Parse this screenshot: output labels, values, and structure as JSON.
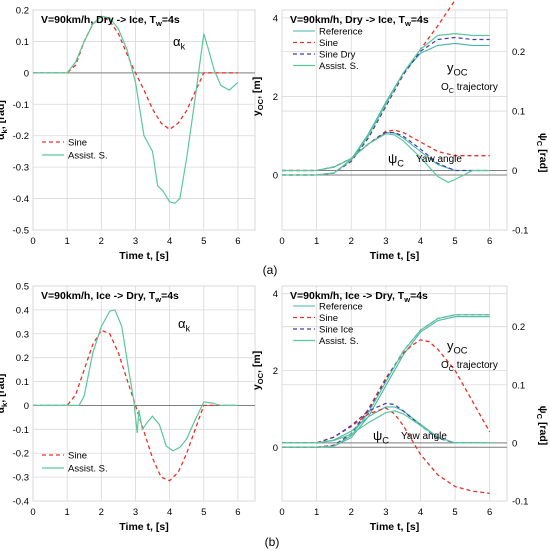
{
  "panel_labels": {
    "a": "(a)",
    "b": "(b)"
  },
  "colors": {
    "reference": "#45b7a8",
    "sine": "#e8312a",
    "sine_alt": "#3c3cb4",
    "assist": "#5cc79a",
    "grid": "#d9d9d9",
    "axis": "#7f7f7f"
  },
  "chart_data": [
    {
      "id": "a-left",
      "type": "line",
      "title": "V=90km/h, Dry -> Ice, T",
      "title_sub": "w",
      "title_tail": "=4s",
      "xlabel": "Time t, [s]",
      "ylabel_main": "α",
      "ylabel_sub": "k",
      "ylabel_tail": ", [rad]",
      "annotation_main": "α",
      "annotation_sub": "k",
      "xlim": [
        0,
        6.5
      ],
      "ylim": [
        -0.5,
        0.2
      ],
      "xticks": [
        0,
        1,
        2,
        3,
        4,
        5,
        6
      ],
      "yticks": [
        -0.5,
        -0.4,
        -0.3,
        -0.2,
        -0.1,
        0,
        0.1,
        0.2
      ],
      "ytick_labels": [
        "-0.5",
        "-0.4",
        "-0.3",
        "-0.2",
        "-0.1",
        "0",
        "0.1",
        "0.2"
      ],
      "series": [
        {
          "name": "Sine",
          "style": "sine",
          "x": [
            0,
            1,
            1.25,
            1.5,
            1.75,
            2,
            2.25,
            2.5,
            2.75,
            3,
            3.25,
            3.5,
            3.75,
            4,
            4.25,
            4.5,
            4.75,
            5,
            5.25,
            5.5,
            5.75,
            6
          ],
          "y": [
            0,
            0,
            0.025,
            0.1,
            0.155,
            0.18,
            0.165,
            0.125,
            0.06,
            0,
            -0.055,
            -0.115,
            -0.16,
            -0.18,
            -0.16,
            -0.12,
            -0.06,
            0,
            0,
            0,
            0,
            0
          ]
        },
        {
          "name": "Assist. S.",
          "style": "assist",
          "x": [
            0,
            1,
            1.25,
            1.5,
            1.75,
            2,
            2.25,
            2.5,
            2.75,
            3,
            3.25,
            3.5,
            3.65,
            3.8,
            4,
            4.15,
            4.3,
            4.5,
            4.75,
            5,
            5.15,
            5.3,
            5.5,
            5.75,
            6
          ],
          "y": [
            0,
            0,
            0.035,
            0.1,
            0.155,
            0.18,
            0.175,
            0.14,
            0.075,
            -0.03,
            -0.2,
            -0.25,
            -0.36,
            -0.375,
            -0.41,
            -0.415,
            -0.4,
            -0.27,
            -0.08,
            0.125,
            0.07,
            0.01,
            -0.04,
            -0.055,
            -0.03
          ]
        }
      ]
    },
    {
      "id": "a-right",
      "type": "line",
      "title": "V=90km/h, Dry -> Ice, T",
      "title_sub": "w",
      "title_tail": "=4s",
      "xlabel": "Time t, [s]",
      "ylabel_main": "y",
      "ylabel_sub": "OC",
      "ylabel_tail": ", [m]",
      "y2label_main": "ψ",
      "y2label_sub": "C",
      "y2label_tail": " [rad]",
      "ann_top_main": "y",
      "ann_top_sub": "OC",
      "ann_top_label": "trajectory",
      "ann_top_label_main": "O",
      "ann_top_label_sub": "C",
      "ann_bot_main": "ψ",
      "ann_bot_sub": "C",
      "ann_bot_label": "Yaw angle",
      "xlim": [
        0,
        6.5
      ],
      "xticks": [
        0,
        1,
        2,
        3,
        4,
        5,
        6
      ],
      "yticks_left": [
        0,
        2,
        4
      ],
      "yticks_right": [
        -0.1,
        0,
        0.1,
        0.2
      ],
      "ylim_left": [
        -1.4,
        4.2
      ],
      "ylim_right": [
        -0.1,
        0.27
      ],
      "series_top": [
        {
          "name": "Reference",
          "style": "reference",
          "x": [
            0,
            1,
            1.5,
            2,
            2.5,
            3,
            3.5,
            4,
            4.5,
            5,
            5.5,
            6
          ],
          "y": [
            0,
            0,
            0.05,
            0.4,
            1.05,
            1.85,
            2.6,
            3.1,
            3.3,
            3.35,
            3.3,
            3.3
          ]
        },
        {
          "name": "Sine",
          "style": "sine",
          "x": [
            0,
            1,
            1.5,
            2,
            2.5,
            3,
            3.5,
            4,
            4.5,
            5,
            5.5,
            6
          ],
          "y": [
            0,
            0,
            0.05,
            0.35,
            0.95,
            1.75,
            2.55,
            3.2,
            3.8,
            4.45,
            5.1,
            5.7
          ]
        },
        {
          "name": "Sine Dry",
          "style": "sine_alt",
          "x": [
            0,
            1,
            1.5,
            2,
            2.5,
            3,
            3.5,
            4,
            4.5,
            5,
            5.5,
            6
          ],
          "y": [
            0,
            0,
            0.05,
            0.35,
            0.95,
            1.75,
            2.55,
            3.15,
            3.45,
            3.5,
            3.45,
            3.45
          ]
        },
        {
          "name": "Assist. S.",
          "style": "assist",
          "x": [
            0,
            1,
            1.5,
            2,
            2.5,
            3,
            3.5,
            4,
            4.5,
            5,
            5.5,
            6
          ],
          "y": [
            0,
            0,
            0.05,
            0.38,
            1.0,
            1.8,
            2.6,
            3.2,
            3.55,
            3.6,
            3.55,
            3.55
          ]
        }
      ],
      "series_bottom": [
        {
          "name": "Reference",
          "style": "reference",
          "x": [
            0,
            1,
            1.5,
            2,
            2.5,
            3,
            3.25,
            3.5,
            4,
            4.5,
            5,
            5.5,
            6
          ],
          "y": [
            0,
            0,
            0.006,
            0.02,
            0.045,
            0.064,
            0.063,
            0.055,
            0.032,
            0.01,
            0,
            0,
            0
          ]
        },
        {
          "name": "Sine",
          "style": "sine",
          "x": [
            0,
            1,
            1.5,
            2,
            2.5,
            3,
            3.25,
            3.5,
            4,
            4.5,
            5,
            5.5,
            6
          ],
          "y": [
            0,
            0,
            0.006,
            0.02,
            0.045,
            0.066,
            0.068,
            0.064,
            0.048,
            0.032,
            0.025,
            0.025,
            0.025
          ]
        },
        {
          "name": "Sine Dry",
          "style": "sine_alt",
          "x": [
            0,
            1,
            1.5,
            2,
            2.5,
            3,
            3.25,
            3.5,
            4,
            4.5,
            5,
            5.5,
            6
          ],
          "y": [
            0,
            0,
            0.006,
            0.02,
            0.045,
            0.064,
            0.064,
            0.058,
            0.036,
            0.012,
            0,
            0,
            0
          ]
        },
        {
          "name": "Assist. S.",
          "style": "assist",
          "x": [
            0,
            1,
            1.5,
            2,
            2.5,
            3,
            3.25,
            3.5,
            4,
            4.5,
            4.8,
            5,
            5.5,
            6
          ],
          "y": [
            0,
            0,
            0.006,
            0.02,
            0.045,
            0.062,
            0.06,
            0.05,
            0.022,
            -0.01,
            -0.02,
            -0.015,
            0,
            0
          ]
        }
      ]
    },
    {
      "id": "b-left",
      "type": "line",
      "title": "V=90km/h, Ice -> Dry, T",
      "title_sub": "w",
      "title_tail": "=4s",
      "xlabel": "Time t, [s]",
      "ylabel_main": "α",
      "ylabel_sub": "k",
      "ylabel_tail": ", [rad]",
      "annotation_main": "α",
      "annotation_sub": "k",
      "xlim": [
        0,
        6.5
      ],
      "ylim": [
        -0.4,
        0.5
      ],
      "xticks": [
        0,
        1,
        2,
        3,
        4,
        5,
        6
      ],
      "yticks": [
        -0.4,
        -0.3,
        -0.2,
        -0.1,
        0,
        0.1,
        0.2,
        0.3,
        0.4,
        0.5
      ],
      "ytick_labels": [
        "-0.4",
        "-0.3",
        "-0.2",
        "-0.1",
        "0",
        "0.1",
        "0.2",
        "0.3",
        "0.4",
        "0.5"
      ],
      "series": [
        {
          "name": "Sine",
          "style": "sine",
          "x": [
            0,
            1,
            1.25,
            1.5,
            1.75,
            2,
            2.25,
            2.5,
            2.75,
            3,
            3.25,
            3.5,
            3.75,
            4,
            4.25,
            4.5,
            4.75,
            5,
            5.25,
            5.5,
            5.75,
            6
          ],
          "y": [
            0,
            0,
            0.045,
            0.15,
            0.255,
            0.315,
            0.3,
            0.22,
            0.11,
            0,
            -0.11,
            -0.22,
            -0.3,
            -0.315,
            -0.28,
            -0.2,
            -0.1,
            0,
            0,
            0,
            0,
            0
          ]
        },
        {
          "name": "Assist. S.",
          "style": "assist",
          "x": [
            0,
            1.35,
            1.5,
            1.75,
            2,
            2.25,
            2.4,
            2.6,
            2.8,
            2.95,
            3.05,
            3.1,
            3.2,
            3.35,
            3.5,
            3.7,
            3.9,
            4.1,
            4.3,
            4.5,
            4.75,
            5,
            5.25,
            5.5,
            5.75,
            6
          ],
          "y": [
            0,
            0,
            0.04,
            0.22,
            0.33,
            0.395,
            0.4,
            0.33,
            0.15,
            0.02,
            -0.115,
            -0.02,
            -0.1,
            -0.07,
            -0.045,
            -0.08,
            -0.17,
            -0.19,
            -0.175,
            -0.14,
            -0.06,
            0.015,
            0.01,
            0,
            0,
            0
          ]
        }
      ]
    },
    {
      "id": "b-right",
      "type": "line",
      "title": "V=90km/h, Ice -> Dry, T",
      "title_sub": "w",
      "title_tail": "=4s",
      "xlabel": "Time t, [s]",
      "ylabel_main": "y",
      "ylabel_sub": "OC",
      "ylabel_tail": ", [m]",
      "y2label_main": "ψ",
      "y2label_sub": "C",
      "y2label_tail": " [rad]",
      "ann_top_main": "y",
      "ann_top_sub": "OC",
      "ann_top_label": "trajectory",
      "ann_top_label_main": "O",
      "ann_top_label_sub": "C",
      "ann_bot_main": "ψ",
      "ann_bot_sub": "C",
      "ann_bot_label": "Yaw angle",
      "xlim": [
        0,
        6.5
      ],
      "xticks": [
        0,
        1,
        2,
        3,
        4,
        5,
        6
      ],
      "yticks_left": [
        0,
        2,
        4
      ],
      "yticks_right": [
        -0.1,
        0,
        0.1,
        0.2
      ],
      "ylim_left": [
        -1.4,
        4.2
      ],
      "ylim_right": [
        -0.1,
        0.27
      ],
      "series_top": [
        {
          "name": "Reference",
          "style": "reference",
          "x": [
            0,
            1,
            1.5,
            2,
            2.5,
            3,
            3.5,
            4,
            4.5,
            5,
            5.5,
            6
          ],
          "y": [
            0,
            0,
            0.03,
            0.25,
            0.8,
            1.6,
            2.4,
            3.0,
            3.3,
            3.4,
            3.4,
            3.4
          ]
        },
        {
          "name": "Sine",
          "style": "sine",
          "x": [
            0,
            1,
            1.5,
            2,
            2.5,
            3,
            3.5,
            3.75,
            4,
            4.25,
            4.5,
            5,
            5.5,
            6
          ],
          "y": [
            0,
            0,
            0.05,
            0.35,
            1.0,
            1.8,
            2.45,
            2.65,
            2.8,
            2.75,
            2.55,
            2.0,
            1.2,
            0.4
          ]
        },
        {
          "name": "Sine Ice",
          "style": "sine_alt",
          "x": [
            0,
            1,
            1.5,
            2,
            2.5,
            3,
            3.5,
            4,
            4.5,
            5,
            5.5,
            6
          ],
          "y": [
            0,
            0,
            0.05,
            0.35,
            0.95,
            1.75,
            2.5,
            3.05,
            3.35,
            3.45,
            3.45,
            3.45
          ]
        },
        {
          "name": "Assist. S.",
          "style": "assist",
          "x": [
            0,
            1,
            1.5,
            2,
            2.5,
            3,
            3.5,
            4,
            4.5,
            5,
            5.5,
            6
          ],
          "y": [
            0,
            0,
            0.03,
            0.3,
            0.9,
            1.7,
            2.5,
            3.05,
            3.35,
            3.45,
            3.45,
            3.45
          ]
        }
      ],
      "series_bottom": [
        {
          "name": "Reference",
          "style": "reference",
          "x": [
            0,
            1,
            1.5,
            2,
            2.5,
            3,
            3.25,
            3.5,
            4,
            4.5,
            5,
            5.5,
            6
          ],
          "y": [
            0,
            0,
            0.005,
            0.02,
            0.045,
            0.062,
            0.062,
            0.055,
            0.032,
            0.01,
            0,
            0,
            0
          ]
        },
        {
          "name": "Sine",
          "style": "sine",
          "x": [
            0,
            1,
            1.5,
            2,
            2.5,
            3,
            3.25,
            3.5,
            4,
            4.5,
            5,
            5.5,
            6
          ],
          "y": [
            0,
            0,
            0.01,
            0.028,
            0.05,
            0.06,
            0.05,
            0.03,
            -0.02,
            -0.055,
            -0.075,
            -0.083,
            -0.087
          ]
        },
        {
          "name": "Sine Ice",
          "style": "sine_alt",
          "x": [
            0,
            1,
            1.5,
            2,
            2.5,
            3,
            3.25,
            3.5,
            4,
            4.5,
            5,
            5.5,
            6
          ],
          "y": [
            0,
            0,
            0.01,
            0.03,
            0.055,
            0.068,
            0.066,
            0.055,
            0.03,
            0.008,
            0,
            0,
            0
          ]
        },
        {
          "name": "Assist. S.",
          "style": "assist",
          "x": [
            0,
            1,
            1.5,
            2,
            2.5,
            3,
            3.25,
            3.5,
            4,
            4.5,
            5,
            5.5,
            6
          ],
          "y": [
            0,
            0,
            0.004,
            0.015,
            0.035,
            0.052,
            0.055,
            0.05,
            0.03,
            0.01,
            0,
            0,
            0
          ]
        }
      ]
    }
  ]
}
